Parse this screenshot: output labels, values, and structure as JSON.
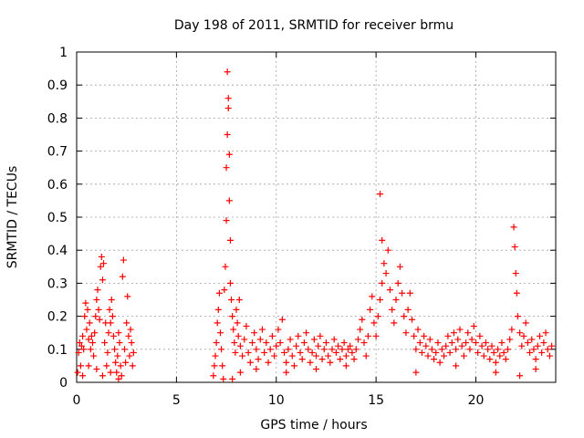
{
  "chart_data": {
    "type": "scatter",
    "title": "Day 198 of 2011, SRMTID for receiver brmu",
    "xlabel": "GPS time / hours",
    "ylabel": "SRMTID / TECUs",
    "xlim": [
      0,
      24
    ],
    "ylim": [
      0,
      1
    ],
    "xticks": [
      0,
      5,
      10,
      15,
      20
    ],
    "xtick_labels": [
      "0",
      "5",
      "10",
      "15",
      "20"
    ],
    "yticks": [
      0,
      0.1,
      0.2,
      0.3,
      0.4,
      0.5,
      0.6,
      0.7,
      0.8,
      0.9,
      1
    ],
    "ytick_labels": [
      "0",
      "0.1",
      "0.2",
      "0.3",
      "0.4",
      "0.5",
      "0.6",
      "0.7",
      "0.8",
      "0.9",
      "1"
    ],
    "grid": true,
    "marker": "+",
    "color": "#ff0000",
    "series": [
      {
        "name": "SRMTID",
        "points": [
          [
            0.05,
            0.03
          ],
          [
            0.1,
            0.09
          ],
          [
            0.15,
            0.12
          ],
          [
            0.2,
            0.05
          ],
          [
            0.25,
            0.11
          ],
          [
            0.3,
            0.14
          ],
          [
            0.35,
            0.1
          ],
          [
            0.4,
            0.2
          ],
          [
            0.45,
            0.24
          ],
          [
            0.5,
            0.16
          ],
          [
            0.55,
            0.22
          ],
          [
            0.6,
            0.13
          ],
          [
            0.65,
            0.18
          ],
          [
            0.7,
            0.1
          ],
          [
            0.75,
            0.14
          ],
          [
            0.8,
            0.12
          ],
          [
            0.85,
            0.08
          ],
          [
            0.9,
            0.15
          ],
          [
            0.95,
            0.2
          ],
          [
            1.0,
            0.25
          ],
          [
            1.05,
            0.28
          ],
          [
            1.1,
            0.22
          ],
          [
            1.15,
            0.19
          ],
          [
            1.2,
            0.35
          ],
          [
            1.25,
            0.38
          ],
          [
            1.3,
            0.31
          ],
          [
            1.35,
            0.36
          ],
          [
            1.4,
            0.12
          ],
          [
            1.45,
            0.18
          ],
          [
            1.5,
            0.05
          ],
          [
            1.55,
            0.09
          ],
          [
            1.6,
            0.15
          ],
          [
            1.65,
            0.22
          ],
          [
            1.7,
            0.18
          ],
          [
            1.75,
            0.25
          ],
          [
            1.8,
            0.2
          ],
          [
            1.85,
            0.14
          ],
          [
            1.9,
            0.1
          ],
          [
            1.95,
            0.06
          ],
          [
            2.0,
            0.03
          ],
          [
            2.05,
            0.08
          ],
          [
            2.1,
            0.15
          ],
          [
            2.15,
            0.12
          ],
          [
            2.2,
            0.05
          ],
          [
            2.25,
            0.02
          ],
          [
            2.3,
            0.32
          ],
          [
            2.35,
            0.37
          ],
          [
            2.4,
            0.1
          ],
          [
            2.45,
            0.06
          ],
          [
            2.5,
            0.18
          ],
          [
            2.55,
            0.26
          ],
          [
            2.6,
            0.14
          ],
          [
            2.65,
            0.08
          ],
          [
            2.7,
            0.16
          ],
          [
            2.75,
            0.12
          ],
          [
            2.8,
            0.05
          ],
          [
            2.85,
            0.09
          ],
          [
            0.3,
            0.02
          ],
          [
            0.6,
            0.05
          ],
          [
            1.0,
            0.04
          ],
          [
            1.3,
            0.02
          ],
          [
            1.7,
            0.03
          ],
          [
            2.1,
            0.01
          ],
          [
            6.85,
            0.02
          ],
          [
            6.9,
            0.05
          ],
          [
            6.95,
            0.08
          ],
          [
            7.0,
            0.12
          ],
          [
            7.05,
            0.18
          ],
          [
            7.1,
            0.22
          ],
          [
            7.15,
            0.27
          ],
          [
            7.2,
            0.15
          ],
          [
            7.25,
            0.1
          ],
          [
            7.3,
            0.05
          ],
          [
            7.35,
            0.01
          ],
          [
            7.4,
            0.28
          ],
          [
            7.45,
            0.35
          ],
          [
            7.5,
            0.49
          ],
          [
            7.5,
            0.65
          ],
          [
            7.55,
            0.75
          ],
          [
            7.55,
            0.94
          ],
          [
            7.6,
            0.86
          ],
          [
            7.6,
            0.83
          ],
          [
            7.65,
            0.69
          ],
          [
            7.65,
            0.55
          ],
          [
            7.7,
            0.43
          ],
          [
            7.7,
            0.3
          ],
          [
            7.75,
            0.25
          ],
          [
            7.8,
            0.2
          ],
          [
            7.85,
            0.16
          ],
          [
            7.9,
            0.12
          ],
          [
            7.95,
            0.09
          ],
          [
            8.0,
            0.22
          ],
          [
            8.05,
            0.18
          ],
          [
            8.1,
            0.14
          ],
          [
            8.15,
            0.25
          ],
          [
            8.2,
            0.11
          ],
          [
            8.3,
            0.08
          ],
          [
            8.4,
            0.13
          ],
          [
            8.5,
            0.17
          ],
          [
            8.6,
            0.09
          ],
          [
            8.7,
            0.06
          ],
          [
            8.8,
            0.12
          ],
          [
            8.9,
            0.15
          ],
          [
            9.0,
            0.1
          ],
          [
            9.1,
            0.07
          ],
          [
            9.2,
            0.13
          ],
          [
            9.3,
            0.16
          ],
          [
            9.4,
            0.09
          ],
          [
            9.5,
            0.12
          ],
          [
            9.6,
            0.06
          ],
          [
            9.7,
            0.1
          ],
          [
            9.8,
            0.14
          ],
          [
            9.9,
            0.08
          ],
          [
            10.0,
            0.11
          ],
          [
            10.1,
            0.16
          ],
          [
            10.2,
            0.12
          ],
          [
            10.3,
            0.19
          ],
          [
            10.4,
            0.09
          ],
          [
            10.5,
            0.06
          ],
          [
            10.6,
            0.1
          ],
          [
            10.7,
            0.13
          ],
          [
            10.8,
            0.08
          ],
          [
            10.9,
            0.05
          ],
          [
            11.0,
            0.11
          ],
          [
            11.1,
            0.14
          ],
          [
            11.2,
            0.09
          ],
          [
            11.3,
            0.07
          ],
          [
            11.4,
            0.12
          ],
          [
            11.5,
            0.15
          ],
          [
            11.6,
            0.1
          ],
          [
            11.7,
            0.06
          ],
          [
            11.8,
            0.09
          ],
          [
            11.9,
            0.13
          ],
          [
            12.0,
            0.08
          ],
          [
            12.1,
            0.11
          ],
          [
            12.2,
            0.14
          ],
          [
            12.3,
            0.07
          ],
          [
            12.4,
            0.1
          ],
          [
            12.5,
            0.12
          ],
          [
            12.6,
            0.08
          ],
          [
            12.7,
            0.06
          ],
          [
            12.8,
            0.1
          ],
          [
            12.9,
            0.13
          ],
          [
            13.0,
            0.09
          ],
          [
            13.1,
            0.11
          ],
          [
            13.2,
            0.07
          ],
          [
            13.3,
            0.1
          ],
          [
            13.4,
            0.12
          ],
          [
            13.5,
            0.08
          ],
          [
            13.6,
            0.1
          ],
          [
            13.7,
            0.11
          ],
          [
            13.8,
            0.09
          ],
          [
            13.9,
            0.07
          ],
          [
            14.0,
            0.1
          ],
          [
            14.1,
            0.13
          ],
          [
            14.2,
            0.16
          ],
          [
            14.3,
            0.19
          ],
          [
            14.4,
            0.12
          ],
          [
            14.5,
            0.08
          ],
          [
            14.6,
            0.14
          ],
          [
            14.7,
            0.22
          ],
          [
            14.8,
            0.26
          ],
          [
            14.9,
            0.18
          ],
          [
            15.0,
            0.14
          ],
          [
            15.1,
            0.2
          ],
          [
            15.2,
            0.25
          ],
          [
            15.2,
            0.57
          ],
          [
            15.3,
            0.43
          ],
          [
            15.3,
            0.3
          ],
          [
            15.4,
            0.36
          ],
          [
            15.5,
            0.33
          ],
          [
            15.6,
            0.4
          ],
          [
            15.7,
            0.28
          ],
          [
            15.8,
            0.22
          ],
          [
            15.9,
            0.18
          ],
          [
            16.0,
            0.25
          ],
          [
            16.1,
            0.3
          ],
          [
            16.2,
            0.35
          ],
          [
            16.3,
            0.27
          ],
          [
            16.4,
            0.2
          ],
          [
            16.5,
            0.15
          ],
          [
            16.6,
            0.22
          ],
          [
            16.7,
            0.27
          ],
          [
            16.8,
            0.19
          ],
          [
            16.9,
            0.14
          ],
          [
            17.0,
            0.1
          ],
          [
            17.1,
            0.16
          ],
          [
            17.2,
            0.12
          ],
          [
            17.3,
            0.09
          ],
          [
            17.4,
            0.14
          ],
          [
            17.5,
            0.11
          ],
          [
            17.6,
            0.08
          ],
          [
            17.7,
            0.13
          ],
          [
            17.8,
            0.1
          ],
          [
            17.9,
            0.07
          ],
          [
            18.0,
            0.09
          ],
          [
            18.1,
            0.12
          ],
          [
            18.2,
            0.06
          ],
          [
            18.3,
            0.1
          ],
          [
            18.4,
            0.08
          ],
          [
            18.5,
            0.11
          ],
          [
            18.6,
            0.14
          ],
          [
            18.7,
            0.09
          ],
          [
            18.8,
            0.12
          ],
          [
            18.9,
            0.15
          ],
          [
            19.0,
            0.1
          ],
          [
            19.1,
            0.13
          ],
          [
            19.2,
            0.16
          ],
          [
            19.3,
            0.11
          ],
          [
            19.4,
            0.08
          ],
          [
            19.5,
            0.12
          ],
          [
            19.6,
            0.15
          ],
          [
            19.7,
            0.1
          ],
          [
            19.8,
            0.13
          ],
          [
            19.9,
            0.17
          ],
          [
            20.0,
            0.12
          ],
          [
            20.1,
            0.09
          ],
          [
            20.2,
            0.14
          ],
          [
            20.3,
            0.11
          ],
          [
            20.4,
            0.08
          ],
          [
            20.5,
            0.12
          ],
          [
            20.6,
            0.1
          ],
          [
            20.7,
            0.07
          ],
          [
            20.8,
            0.11
          ],
          [
            20.9,
            0.09
          ],
          [
            21.0,
            0.06
          ],
          [
            21.1,
            0.1
          ],
          [
            21.2,
            0.08
          ],
          [
            21.3,
            0.12
          ],
          [
            21.4,
            0.09
          ],
          [
            21.5,
            0.07
          ],
          [
            21.6,
            0.1
          ],
          [
            21.7,
            0.13
          ],
          [
            21.8,
            0.16
          ],
          [
            21.9,
            0.47
          ],
          [
            21.95,
            0.41
          ],
          [
            22.0,
            0.33
          ],
          [
            22.05,
            0.27
          ],
          [
            22.1,
            0.2
          ],
          [
            22.2,
            0.15
          ],
          [
            22.3,
            0.11
          ],
          [
            22.4,
            0.14
          ],
          [
            22.5,
            0.18
          ],
          [
            22.6,
            0.12
          ],
          [
            22.7,
            0.09
          ],
          [
            22.8,
            0.13
          ],
          [
            22.9,
            0.1
          ],
          [
            23.0,
            0.07
          ],
          [
            23.1,
            0.11
          ],
          [
            23.2,
            0.14
          ],
          [
            23.3,
            0.09
          ],
          [
            23.4,
            0.12
          ],
          [
            23.5,
            0.15
          ],
          [
            23.6,
            0.1
          ],
          [
            23.7,
            0.08
          ],
          [
            23.8,
            0.11
          ],
          [
            7.8,
            0.01
          ],
          [
            8.2,
            0.03
          ],
          [
            9.0,
            0.04
          ],
          [
            10.5,
            0.03
          ],
          [
            12.0,
            0.04
          ],
          [
            13.5,
            0.05
          ],
          [
            17.0,
            0.03
          ],
          [
            19.0,
            0.05
          ],
          [
            21.0,
            0.03
          ],
          [
            22.2,
            0.02
          ],
          [
            23.0,
            0.04
          ]
        ]
      }
    ]
  }
}
